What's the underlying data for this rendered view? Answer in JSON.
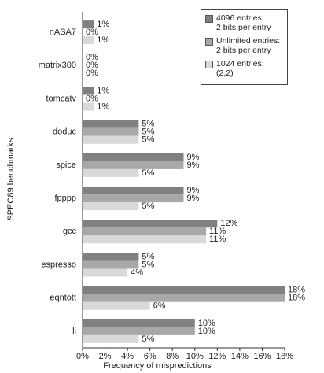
{
  "chart_data": {
    "type": "hbar",
    "ylabel": "SPEC89 benchmarks",
    "xlabel": "Frequency of mispredictions",
    "categories": [
      "nASA7",
      "matrix300",
      "tomcatv",
      "doduc",
      "spice",
      "fpppp",
      "gcc",
      "espresso",
      "eqntott",
      "li"
    ],
    "series": [
      {
        "name": "4096 entries:\n2 bits per entry",
        "color": "#808080",
        "values": [
          1,
          0,
          1,
          5,
          9,
          9,
          12,
          5,
          18,
          10
        ],
        "value_labels": [
          "1%",
          "0%",
          "1%",
          "5%",
          "9%",
          "9%",
          "12%",
          "5%",
          "18%",
          "10%"
        ]
      },
      {
        "name": "Unlimited entries:\n2 bits per entry",
        "color": "#a8a8a8",
        "values": [
          0,
          0,
          0,
          5,
          9,
          9,
          11,
          5,
          18,
          10
        ],
        "value_labels": [
          "0%",
          "0%",
          "0%",
          "5%",
          "9%",
          "9%",
          "11%",
          "5%",
          "18%",
          "10%"
        ]
      },
      {
        "name": "1024 entries:\n(2,2)",
        "color": "#d9d9d9",
        "values": [
          1,
          0,
          1,
          5,
          5,
          5,
          11,
          4,
          6,
          5
        ],
        "value_labels": [
          "1%",
          "0%",
          "1%",
          "5%",
          "5%",
          "5%",
          "11%",
          "4%",
          "6%",
          "5%"
        ]
      }
    ],
    "xlim": [
      0,
      18
    ],
    "xticks": [
      {
        "value": 0,
        "label": "0%"
      },
      {
        "value": 2,
        "label": "2%"
      },
      {
        "value": 4,
        "label": "4%"
      },
      {
        "value": 6,
        "label": "6%"
      },
      {
        "value": 8,
        "label": "8%"
      },
      {
        "value": 10,
        "label": "10%"
      },
      {
        "value": 12,
        "label": "12%"
      },
      {
        "value": 14,
        "label": "14%"
      },
      {
        "value": 16,
        "label": "16%"
      },
      {
        "value": 18,
        "label": "18%"
      }
    ],
    "legend": "top-right"
  }
}
